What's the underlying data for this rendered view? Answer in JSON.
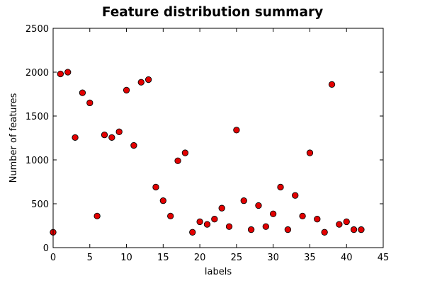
{
  "chart_data": {
    "type": "scatter",
    "title": "Feature distribution  summary",
    "xlabel": "labels",
    "ylabel": "Number of features",
    "xlim": [
      0,
      45
    ],
    "ylim": [
      0,
      2500
    ],
    "xticks": [
      0,
      5,
      10,
      15,
      20,
      25,
      30,
      35,
      40,
      45
    ],
    "yticks": [
      0,
      500,
      1000,
      1500,
      2000,
      2500
    ],
    "xtick_labels": [
      "0",
      "5",
      "10",
      "15",
      "20",
      "25",
      "30",
      "35",
      "40",
      "45"
    ],
    "ytick_labels": [
      "0",
      "500",
      "1000",
      "1500",
      "2000",
      "2500"
    ],
    "grid": false,
    "legend": "none",
    "marker_color": "#e30000",
    "marker_edge_color": "#000000",
    "series": [
      {
        "x": [
          0,
          1,
          2,
          3,
          4,
          5,
          6,
          7,
          8,
          9,
          10,
          11,
          12,
          13,
          14,
          15,
          16,
          17,
          18,
          19,
          20,
          21,
          22,
          23,
          24,
          25,
          26,
          27,
          28,
          29,
          30,
          31,
          32,
          33,
          34,
          35,
          36,
          37,
          38,
          39,
          40,
          41,
          42
        ],
        "y": [
          175,
          1980,
          2000,
          1255,
          1765,
          1650,
          360,
          1285,
          1255,
          1320,
          1795,
          1165,
          1885,
          1915,
          690,
          535,
          360,
          990,
          1080,
          175,
          295,
          265,
          325,
          450,
          240,
          1340,
          535,
          205,
          480,
          240,
          385,
          690,
          205,
          595,
          360,
          1080,
          325,
          175,
          1860,
          265,
          295,
          205,
          205
        ]
      }
    ]
  }
}
